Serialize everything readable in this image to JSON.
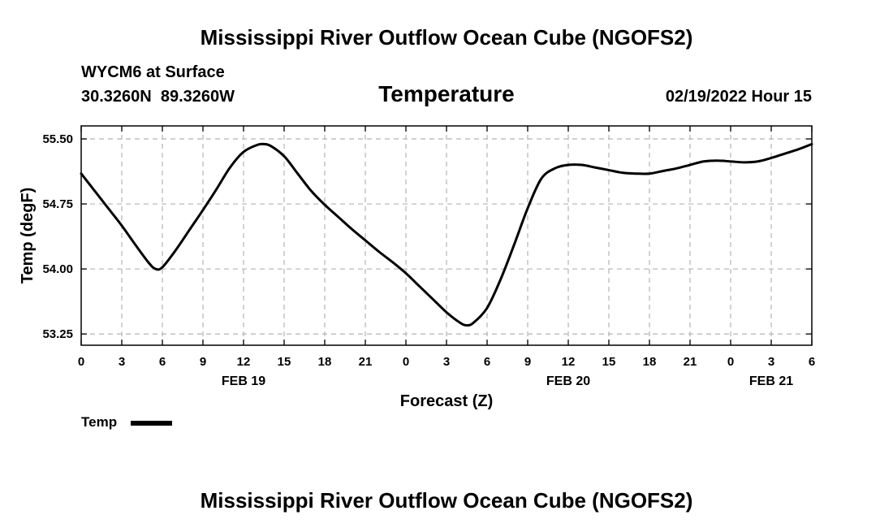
{
  "chart_data": {
    "type": "line",
    "title": "Mississippi River Outflow Ocean Cube (NGOFS2)",
    "footer_title": "Mississippi River Outflow Ocean Cube (NGOFS2)",
    "subtitle": "Temperature",
    "station": "WYCM6 at Surface",
    "coordinates": "30.3260N  89.3260W",
    "timestamp": "02/19/2022 Hour 15",
    "xlabel": "Forecast (Z)",
    "ylabel": "Temp (degF)",
    "xlim": [
      0,
      54
    ],
    "ylim": [
      53.12,
      55.65
    ],
    "yticks": [
      53.25,
      54.0,
      54.75,
      55.5
    ],
    "ytick_labels": [
      "53.25",
      "54.00",
      "54.75",
      "55.50"
    ],
    "xticks": [
      0,
      3,
      6,
      9,
      12,
      15,
      18,
      21,
      24,
      27,
      30,
      33,
      36,
      39,
      42,
      45,
      48,
      51,
      54
    ],
    "xtick_labels": [
      "0",
      "3",
      "6",
      "9",
      "12",
      "15",
      "18",
      "21",
      "0",
      "3",
      "6",
      "9",
      "12",
      "15",
      "18",
      "21",
      "0",
      "3",
      "6"
    ],
    "day_labels": [
      {
        "x": 12,
        "label": "FEB 19"
      },
      {
        "x": 36,
        "label": "FEB 20"
      },
      {
        "x": 51,
        "label": "FEB 21"
      }
    ],
    "grid": true,
    "legend": {
      "label": "Temp",
      "placement": "bottom-left"
    },
    "series": [
      {
        "name": "Temp",
        "color": "#000000",
        "x": [
          0,
          1,
          2,
          3,
          4,
          5,
          5.5,
          6,
          7,
          8,
          9,
          10,
          11,
          12,
          13,
          13.5,
          14,
          15,
          16,
          17,
          18,
          19,
          20,
          21,
          22,
          23,
          24,
          25,
          26,
          27,
          28,
          28.5,
          29,
          30,
          31,
          32,
          33,
          34,
          35,
          36,
          37,
          38,
          39,
          40,
          41,
          42,
          43,
          44,
          45,
          46,
          47,
          48,
          49,
          50,
          51,
          52,
          53,
          54
        ],
        "y": [
          55.1,
          54.9,
          54.7,
          54.5,
          54.28,
          54.07,
          54.0,
          54.02,
          54.22,
          54.45,
          54.68,
          54.92,
          55.17,
          55.35,
          55.43,
          55.44,
          55.42,
          55.3,
          55.1,
          54.9,
          54.74,
          54.6,
          54.46,
          54.33,
          54.2,
          54.08,
          53.95,
          53.8,
          53.65,
          53.5,
          53.38,
          53.35,
          53.38,
          53.55,
          53.88,
          54.28,
          54.7,
          55.04,
          55.16,
          55.2,
          55.2,
          55.17,
          55.14,
          55.11,
          55.1,
          55.1,
          55.13,
          55.16,
          55.2,
          55.24,
          55.25,
          55.24,
          55.23,
          55.24,
          55.28,
          55.33,
          55.38,
          55.44
        ]
      }
    ]
  }
}
